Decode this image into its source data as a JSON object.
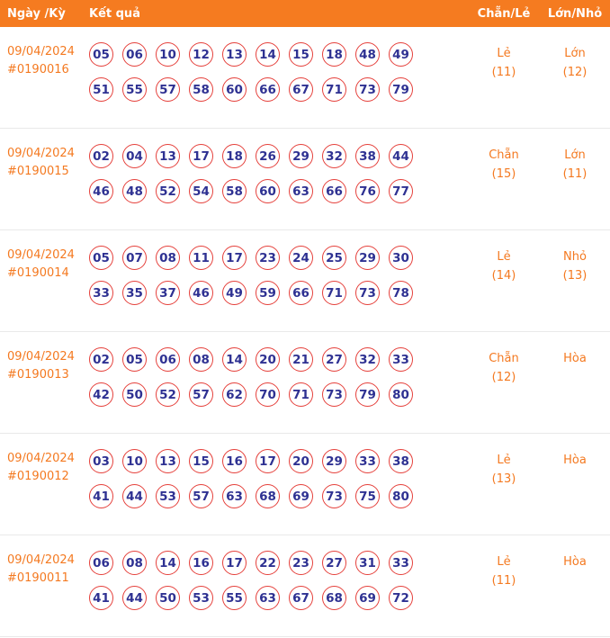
{
  "header": {
    "col_date": "Ngày /Kỳ",
    "col_result": "Kết quả",
    "col_evenodd": "Chẵn/Lẻ",
    "col_bigsmall": "Lớn/Nhỏ"
  },
  "rows": [
    {
      "date": "09/04/2024",
      "period": "#0190016",
      "numbers_row1": [
        "05",
        "06",
        "10",
        "12",
        "13",
        "14",
        "15",
        "18",
        "48",
        "49"
      ],
      "numbers_row2": [
        "51",
        "55",
        "57",
        "58",
        "60",
        "66",
        "67",
        "71",
        "73",
        "79"
      ],
      "evenodd": "Lẻ",
      "evenodd_count": "(11)",
      "bigsmall": "Lớn",
      "bigsmall_count": "(12)"
    },
    {
      "date": "09/04/2024",
      "period": "#0190015",
      "numbers_row1": [
        "02",
        "04",
        "13",
        "17",
        "18",
        "26",
        "29",
        "32",
        "38",
        "44"
      ],
      "numbers_row2": [
        "46",
        "48",
        "52",
        "54",
        "58",
        "60",
        "63",
        "66",
        "76",
        "77"
      ],
      "evenodd": "Chẵn",
      "evenodd_count": "(15)",
      "bigsmall": "Lớn",
      "bigsmall_count": "(11)"
    },
    {
      "date": "09/04/2024",
      "period": "#0190014",
      "numbers_row1": [
        "05",
        "07",
        "08",
        "11",
        "17",
        "23",
        "24",
        "25",
        "29",
        "30"
      ],
      "numbers_row2": [
        "33",
        "35",
        "37",
        "46",
        "49",
        "59",
        "66",
        "71",
        "73",
        "78"
      ],
      "evenodd": "Lẻ",
      "evenodd_count": "(14)",
      "bigsmall": "Nhỏ",
      "bigsmall_count": "(13)"
    },
    {
      "date": "09/04/2024",
      "period": "#0190013",
      "numbers_row1": [
        "02",
        "05",
        "06",
        "08",
        "14",
        "20",
        "21",
        "27",
        "32",
        "33"
      ],
      "numbers_row2": [
        "42",
        "50",
        "52",
        "57",
        "62",
        "70",
        "71",
        "73",
        "79",
        "80"
      ],
      "evenodd": "Chẵn",
      "evenodd_count": "(12)",
      "bigsmall": "Hòa",
      "bigsmall_count": ""
    },
    {
      "date": "09/04/2024",
      "period": "#0190012",
      "numbers_row1": [
        "03",
        "10",
        "13",
        "15",
        "16",
        "17",
        "20",
        "29",
        "33",
        "38"
      ],
      "numbers_row2": [
        "41",
        "44",
        "53",
        "57",
        "63",
        "68",
        "69",
        "73",
        "75",
        "80"
      ],
      "evenodd": "Lẻ",
      "evenodd_count": "(13)",
      "bigsmall": "Hòa",
      "bigsmall_count": ""
    },
    {
      "date": "09/04/2024",
      "period": "#0190011",
      "numbers_row1": [
        "06",
        "08",
        "14",
        "16",
        "17",
        "22",
        "23",
        "27",
        "31",
        "33"
      ],
      "numbers_row2": [
        "41",
        "44",
        "50",
        "53",
        "55",
        "63",
        "67",
        "68",
        "69",
        "72"
      ],
      "evenodd": "Lẻ",
      "evenodd_count": "(11)",
      "bigsmall": "Hòa",
      "bigsmall_count": ""
    }
  ],
  "colors": {
    "header_bg": "#f57b20",
    "accent_text": "#f47920",
    "ball_border": "#e5403b",
    "ball_number": "#2e3192",
    "row_border": "#e9e9e9"
  }
}
